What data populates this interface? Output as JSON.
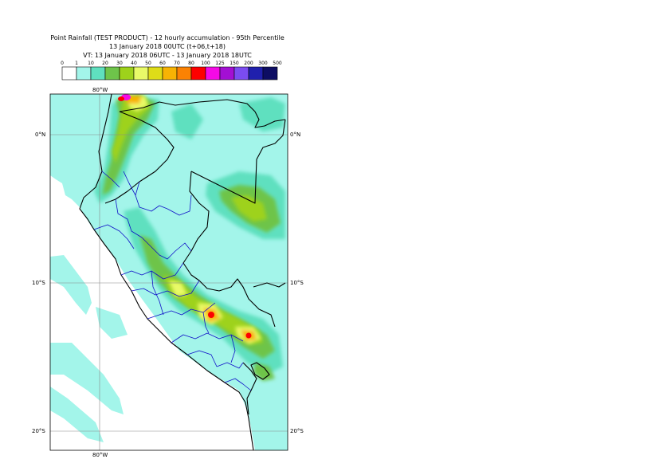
{
  "header": {
    "line1": "Point Rainfall (TEST PRODUCT) - 12 hourly accumulation - 95th Percentile",
    "line2": "13 January 2018 00UTC (t+06,t+18)",
    "line3": "VT: 13 January 2018 06UTC - 13 January 2018 18UTC"
  },
  "legend": {
    "labels": [
      "0",
      "1",
      "10",
      "20",
      "30",
      "40",
      "50",
      "60",
      "70",
      "80",
      "100",
      "125",
      "150",
      "200",
      "300",
      "500"
    ],
    "colors": [
      "#ffffff",
      "#a3f5ea",
      "#5fe0bf",
      "#6ec44a",
      "#9ed21b",
      "#e9fa68",
      "#dedc18",
      "#f7b304",
      "#fb8203",
      "#fd0000",
      "#f50ae6",
      "#a30fd3",
      "#7b4cf1",
      "#2020ad",
      "#0d0d63"
    ]
  },
  "map": {
    "lat_labels": [
      "0°N",
      "10°S",
      "20°S"
    ],
    "lon_labels": [
      "80°W"
    ]
  }
}
